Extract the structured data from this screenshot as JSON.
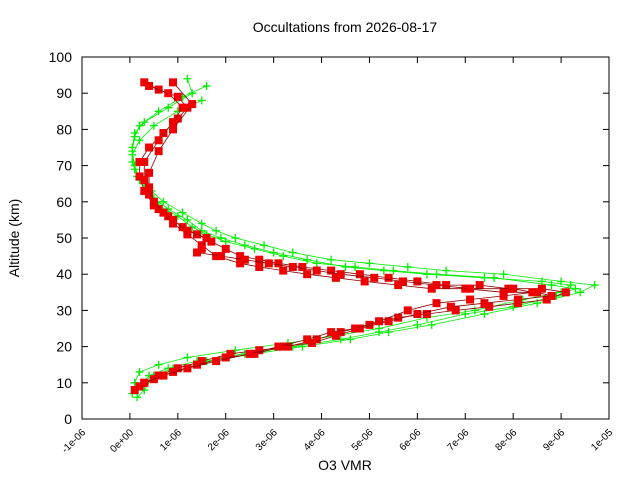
{
  "chart_data": {
    "type": "scatter",
    "title": "Occultations from 2026-08-17",
    "xlabel": "O3 VMR",
    "ylabel": "Altitude (km)",
    "xlim": [
      -1e-06,
      1e-05
    ],
    "ylim": [
      0,
      100
    ],
    "x_ticks": [
      "-1e-06",
      "0e+00",
      "1e-06",
      "2e-06",
      "3e-06",
      "4e-06",
      "5e-06",
      "6e-06",
      "7e-06",
      "8e-06",
      "9e-06",
      "1e-05"
    ],
    "y_ticks": [
      "0",
      "10",
      "20",
      "30",
      "40",
      "50",
      "60",
      "70",
      "80",
      "90",
      "100"
    ],
    "grid": false,
    "legend": "none",
    "series": [
      {
        "color": "#00ee00",
        "marker": "plus",
        "profiles": [
          {
            "x": [
              1.5e-07,
              3e-07,
              5e-07,
              9e-07,
              1.6e-06,
              2.6e-06,
              3.6e-06,
              4.6e-06,
              5.4e-06,
              6.3e-06,
              7.4e-06,
              8.5e-06,
              9.4e-06,
              9.7e-06,
              9e-06,
              7.8e-06,
              6.6e-06,
              5.8e-06,
              5e-06,
              4.2e-06,
              3.4e-06,
              2.8e-06,
              2.2e-06,
              1.8e-06,
              1.5e-06,
              1.1e-06,
              7e-07,
              4.5e-07,
              1.5e-07,
              5e-08,
              5e-08,
              1e-07,
              3e-07,
              8e-07,
              1.3e-06,
              1.2e-06
            ],
            "y": [
              6,
              8,
              12,
              14,
              16,
              18,
              20,
              22,
              24,
              26,
              29,
              32,
              35,
              37,
              38,
              40,
              41,
              42,
              43,
              44,
              46,
              48,
              50,
              52,
              54,
              57,
              60,
              63,
              67,
              71,
              75,
              79,
              82,
              86,
              90,
              94
            ]
          },
          {
            "x": [
              5e-08,
              2e-07,
              4e-07,
              8e-07,
              1.4e-06,
              2.4e-06,
              3.4e-06,
              4.4e-06,
              5.2e-06,
              6e-06,
              7e-06,
              8e-06,
              8.9e-06,
              9.3e-06,
              8.8e-06,
              7.6e-06,
              6.4e-06,
              5.5e-06,
              4.7e-06,
              3.9e-06,
              3.2e-06,
              2.6e-06,
              2e-06,
              1.6e-06,
              1.3e-06,
              1e-06,
              6e-07,
              4e-07,
              2e-07,
              1e-07,
              5e-08,
              1e-07,
              2e-07,
              6e-07,
              1.1e-06,
              1.6e-06
            ],
            "y": [
              7,
              9,
              12,
              14,
              16,
              18,
              20,
              22,
              24,
              26,
              29,
              31,
              34,
              36,
              37,
              39,
              40,
              41,
              42,
              43,
              45,
              47,
              49,
              51,
              53,
              56,
              59,
              62,
              66,
              70,
              74,
              78,
              81,
              85,
              89,
              92
            ]
          },
          {
            "x": [
              1e-07,
              2e-07,
              6e-07,
              1.2e-06,
              2.2e-06,
              3.3e-06,
              4.3e-06,
              5.2e-06,
              6.2e-06,
              7.2e-06,
              8.2e-06,
              9e-06,
              9.2e-06,
              8.6e-06,
              7.4e-06,
              6.2e-06,
              5.3e-06,
              4.5e-06,
              3.7e-06,
              3e-06,
              2.4e-06,
              1.9e-06,
              1.5e-06,
              1.2e-06,
              8e-07,
              5e-07,
              3e-07,
              1e-07,
              5e-08,
              2e-07,
              5e-07,
              1e-06,
              1.5e-06
            ],
            "y": [
              10,
              13,
              15,
              17,
              19,
              21,
              23,
              25,
              28,
              30,
              33,
              35,
              37,
              38,
              39,
              40,
              41,
              42,
              44,
              46,
              48,
              50,
              52,
              55,
              58,
              61,
              65,
              69,
              73,
              77,
              81,
              85,
              88
            ]
          }
        ]
      },
      {
        "color": "#ee0000",
        "marker": "square",
        "profiles": [
          {
            "x": [
              1e-07,
              3e-07,
              6e-07,
              1e-06,
              1.5e-06,
              2.1e-06,
              2.7e-06,
              3.3e-06,
              3.9e-06,
              4.4e-06,
              5e-06,
              5.6e-06,
              6.2e-06,
              6.8e-06,
              7.5e-06,
              8.1e-06,
              8.7e-06,
              9.1e-06,
              8.6e-06,
              7.9e-06,
              7.3e-06,
              6.6e-06,
              6e-06,
              5.4e-06,
              4.8e-06,
              4.2e-06,
              3.6e-06,
              3.1e-06,
              2.7e-06,
              2.3e-06,
              2e-06,
              1.7e-06,
              1.4e-06,
              1.1e-06,
              8e-07,
              5e-07,
              3e-07,
              2e-07,
              2e-07,
              4e-07,
              7e-07,
              1e-06,
              1.2e-06,
              1e-06,
              6e-07,
              3e-07
            ],
            "y": [
              8,
              10,
              12,
              14,
              16,
              18,
              19,
              20,
              22,
              24,
              26,
              28,
              29,
              30,
              31,
              32,
              33,
              35,
              36,
              36,
              37,
              37,
              38,
              39,
              40,
              41,
              42,
              43,
              44,
              45,
              47,
              49,
              51,
              53,
              56,
              59,
              63,
              67,
              71,
              75,
              79,
              83,
              86,
              89,
              91,
              93
            ]
          },
          {
            "x": [
              2e-07,
              5e-07,
              9e-07,
              1.4e-06,
              2e-06,
              2.6e-06,
              3.2e-06,
              3.8e-06,
              4.3e-06,
              4.8e-06,
              5.4e-06,
              6e-06,
              6.7e-06,
              7.4e-06,
              8.1e-06,
              8.8e-06,
              8.5e-06,
              7.8e-06,
              7e-06,
              6.3e-06,
              5.6e-06,
              4.9e-06,
              4.3e-06,
              3.7e-06,
              3.2e-06,
              2.7e-06,
              2.3e-06,
              1.8e-06,
              1.5e-06,
              1.2e-06,
              9e-07,
              6e-07,
              4e-07,
              3e-07,
              3e-07,
              6e-07,
              9e-07,
              1.1e-06,
              8e-07,
              4e-07
            ],
            "y": [
              9,
              11,
              13,
              15,
              17,
              18,
              20,
              21,
              23,
              25,
              27,
              29,
              31,
              32,
              33,
              34,
              35,
              35,
              36,
              36,
              37,
              38,
              39,
              40,
              41,
              42,
              43,
              45,
              48,
              51,
              54,
              58,
              62,
              66,
              71,
              77,
              82,
              86,
              90,
              92
            ]
          },
          {
            "x": [
              3e-07,
              7e-07,
              1.2e-06,
              1.8e-06,
              2.5e-06,
              3.1e-06,
              3.7e-06,
              4.2e-06,
              4.7e-06,
              5.2e-06,
              5.8e-06,
              6.4e-06,
              7.1e-06,
              7.8e-06,
              8.4e-06,
              8e-06,
              7.1e-06,
              6.4e-06,
              5.7e-06,
              5.1e-06,
              4.4e-06,
              3.9e-06,
              3.4e-06,
              2.9e-06,
              2.4e-06,
              1.9e-06,
              1.4e-06,
              1.5e-06,
              1.6e-06,
              1.2e-06,
              9e-07,
              7e-07,
              5e-07,
              4e-07,
              4e-07,
              6e-07,
              9e-07,
              1.3e-06,
              9e-07
            ],
            "y": [
              10,
              12,
              14,
              16,
              18,
              20,
              22,
              24,
              25,
              27,
              30,
              32,
              33,
              34,
              35,
              36,
              36,
              37,
              38,
              39,
              40,
              41,
              42,
              43,
              44,
              45,
              46,
              47,
              50,
              52,
              55,
              57,
              60,
              64,
              68,
              74,
              80,
              87,
              93
            ]
          }
        ]
      }
    ]
  }
}
